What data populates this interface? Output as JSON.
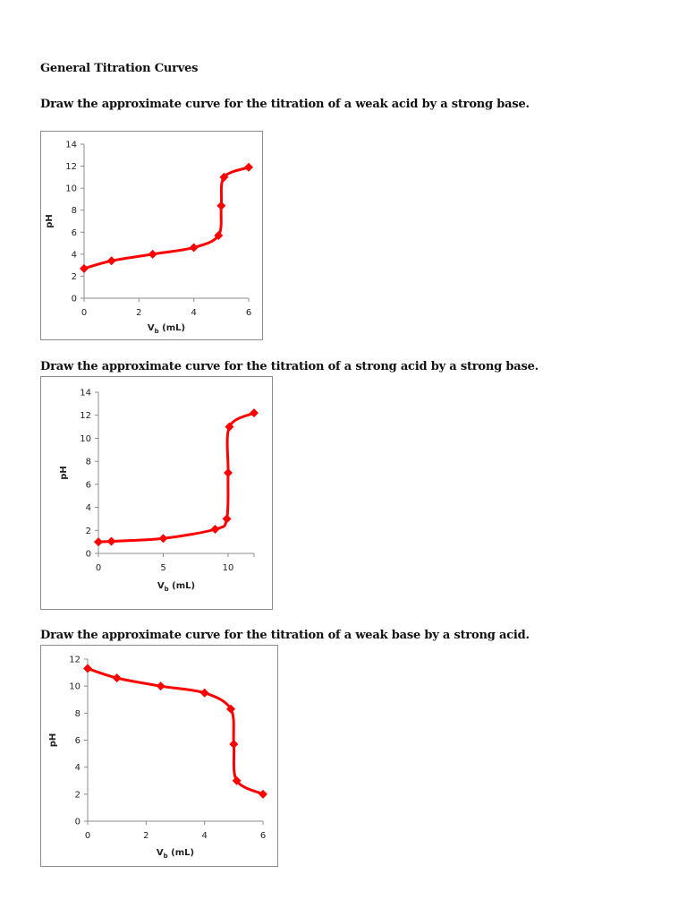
{
  "document": {
    "title": "General Titration Curves",
    "questions": [
      "Draw the approximate curve for the titration of a weak acid by a strong base.",
      "Draw the approximate curve for the titration of a strong acid by a strong base.",
      "Draw the approximate curve for the titration of a weak base by a strong acid."
    ]
  },
  "colors": {
    "series": "#ff0000",
    "axis": "#8c8c8c",
    "border": "#8c8c8c"
  },
  "chart_data": [
    {
      "type": "line",
      "title": "",
      "xlabel": "V_b (mL)",
      "ylabel": "pH",
      "xlim": [
        0,
        6
      ],
      "ylim": [
        0,
        14
      ],
      "xticks": [
        0,
        2,
        4,
        6
      ],
      "yticks": [
        0,
        2,
        4,
        6,
        8,
        10,
        12,
        14
      ],
      "grid": false,
      "legend": "none",
      "series": [
        {
          "name": "pH",
          "marker": "diamond",
          "smooth": true,
          "x": [
            0,
            1,
            2.5,
            4,
            4.9,
            5,
            5.1,
            6
          ],
          "y": [
            2.7,
            3.4,
            4.0,
            4.6,
            5.7,
            8.4,
            11.0,
            11.9
          ]
        }
      ]
    },
    {
      "type": "line",
      "title": "",
      "xlabel": "V_b (mL)",
      "ylabel": "pH",
      "xlim": [
        0,
        12
      ],
      "ylim": [
        0,
        14
      ],
      "xticks": [
        0,
        5,
        10
      ],
      "yticks": [
        0,
        2,
        4,
        6,
        8,
        10,
        12,
        14
      ],
      "grid": false,
      "legend": "none",
      "series": [
        {
          "name": "pH",
          "marker": "diamond",
          "smooth": true,
          "x": [
            0,
            1,
            5,
            9,
            9.9,
            10,
            10.1,
            12
          ],
          "y": [
            1.0,
            1.05,
            1.3,
            2.1,
            3.0,
            7.0,
            11.0,
            12.2
          ]
        }
      ]
    },
    {
      "type": "line",
      "title": "",
      "xlabel": "V_b (mL)",
      "ylabel": "pH",
      "xlim": [
        0,
        6
      ],
      "ylim": [
        0,
        12
      ],
      "xticks": [
        0,
        2,
        4,
        6
      ],
      "yticks": [
        0,
        2,
        4,
        6,
        8,
        10,
        12
      ],
      "grid": false,
      "legend": "none",
      "series": [
        {
          "name": "pH",
          "marker": "diamond",
          "smooth": true,
          "x": [
            0,
            1,
            2.5,
            4,
            4.9,
            5,
            5.1,
            6
          ],
          "y": [
            11.3,
            10.6,
            10.0,
            9.5,
            8.3,
            5.7,
            3.0,
            2.0
          ]
        }
      ]
    }
  ]
}
